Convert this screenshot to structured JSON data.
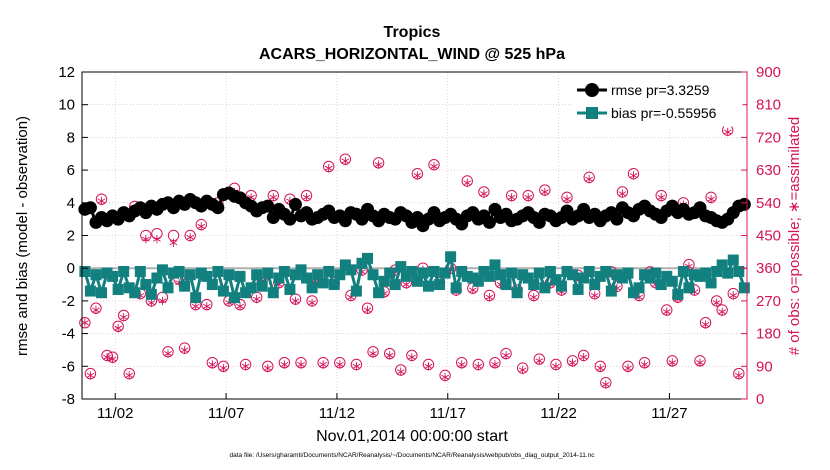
{
  "chart_data": {
    "type": "line",
    "title": "Tropics",
    "subtitle": "ACARS_HORIZONTAL_WIND @ 525 hPa",
    "xlabel": "Nov.01,2014 00:00:00 start",
    "ylabel_left": "rmse and bias (model - observation)",
    "ylabel_right": "# of obs: o=possible; ∗=assimilated",
    "footer": "data file: /Users/gharamti/Documents/NCAR/Reanalysis/~/Documents/NCAR/Reanalysis/webpub/obs_diag_output_2014-11.nc",
    "xlim": [
      0.5,
      30.5
    ],
    "ylim_left": [
      -8,
      12
    ],
    "ylim_right": [
      0,
      900
    ],
    "x_ticks": [
      2,
      7,
      12,
      17,
      22,
      27
    ],
    "x_tick_labels": [
      "11/02",
      "11/07",
      "11/12",
      "11/17",
      "11/22",
      "11/27"
    ],
    "y_left_ticks": [
      -8,
      -6,
      -4,
      -2,
      0,
      2,
      4,
      6,
      8,
      10,
      12
    ],
    "y_left_tick_labels": [
      "-8",
      "-6",
      "-4",
      "-2",
      "0",
      "2",
      "4",
      "6",
      "8",
      "10",
      "12"
    ],
    "y_right_ticks": [
      0,
      90,
      180,
      270,
      360,
      450,
      540,
      630,
      720,
      810,
      900
    ],
    "y_right_tick_labels": [
      "0",
      "90",
      "180",
      "270",
      "360",
      "450",
      "540",
      "630",
      "720",
      "810",
      "900"
    ],
    "grid": true,
    "legend_position": "top-right",
    "colors": {
      "rmse": "#000000",
      "bias": "#138080",
      "obs": "#d4135a",
      "zero_line": "#b0b0b0",
      "grid": "#d9b0c4"
    },
    "series": [
      {
        "name": "rmse",
        "legend": "rmse pr=3.3259",
        "marker": "circle",
        "x": [
          0.63,
          0.88,
          1.13,
          1.38,
          1.63,
          1.88,
          2.13,
          2.38,
          2.63,
          2.88,
          3.13,
          3.38,
          3.63,
          3.88,
          4.13,
          4.38,
          4.63,
          4.88,
          5.13,
          5.38,
          5.63,
          5.88,
          6.13,
          6.38,
          6.63,
          6.88,
          7.13,
          7.38,
          7.63,
          7.88,
          8.13,
          8.38,
          8.63,
          8.88,
          9.13,
          9.38,
          9.63,
          9.88,
          10.13,
          10.38,
          10.63,
          10.88,
          11.13,
          11.38,
          11.63,
          11.88,
          12.13,
          12.38,
          12.63,
          12.88,
          13.13,
          13.38,
          13.63,
          13.88,
          14.13,
          14.38,
          14.63,
          14.88,
          15.13,
          15.38,
          15.63,
          15.88,
          16.13,
          16.38,
          16.63,
          16.88,
          17.13,
          17.38,
          17.63,
          17.88,
          18.13,
          18.38,
          18.63,
          18.88,
          19.13,
          19.38,
          19.63,
          19.88,
          20.13,
          20.38,
          20.63,
          20.88,
          21.13,
          21.38,
          21.63,
          21.88,
          22.13,
          22.38,
          22.63,
          22.88,
          23.13,
          23.38,
          23.63,
          23.88,
          24.13,
          24.38,
          24.63,
          24.88,
          25.13,
          25.38,
          25.63,
          25.88,
          26.13,
          26.38,
          26.63,
          26.88,
          27.13,
          27.38,
          27.63,
          27.88,
          28.13,
          28.38,
          28.63,
          28.88,
          29.13,
          29.38,
          29.63,
          29.88,
          30.13,
          30.38
        ],
        "values": [
          3.6,
          3.7,
          2.8,
          3.1,
          2.9,
          3.2,
          3.0,
          3.4,
          3.2,
          3.5,
          3.7,
          3.4,
          3.8,
          3.6,
          3.9,
          4.0,
          3.7,
          4.1,
          3.9,
          4.2,
          4.0,
          3.8,
          4.1,
          3.9,
          3.7,
          4.5,
          4.6,
          4.4,
          4.3,
          4.0,
          3.8,
          3.5,
          3.7,
          3.8,
          3.1,
          3.6,
          3.3,
          3.0,
          3.9,
          3.2,
          3.4,
          3.0,
          3.1,
          3.3,
          3.5,
          3.1,
          3.2,
          2.9,
          3.4,
          3.3,
          3.0,
          3.6,
          3.2,
          2.9,
          3.3,
          3.1,
          3.0,
          3.4,
          3.2,
          2.8,
          3.1,
          2.6,
          3.0,
          3.4,
          2.9,
          3.1,
          3.3,
          3.0,
          2.7,
          3.2,
          3.4,
          3.0,
          3.2,
          2.8,
          3.6,
          3.1,
          3.3,
          2.9,
          3.0,
          3.2,
          3.4,
          3.1,
          2.8,
          3.3,
          3.2,
          2.9,
          3.1,
          3.5,
          3.0,
          3.2,
          3.6,
          3.1,
          3.3,
          2.9,
          3.2,
          3.4,
          3.0,
          3.7,
          3.4,
          3.2,
          3.6,
          3.8,
          3.5,
          3.3,
          3.1,
          3.5,
          3.8,
          3.4,
          3.6,
          3.3,
          3.4,
          3.7,
          3.2,
          3.1,
          2.9,
          2.8,
          3.0,
          3.4,
          3.8,
          3.9
        ]
      },
      {
        "name": "bias",
        "legend": "bias pr=-0.55956",
        "marker": "square",
        "x": [
          0.63,
          0.88,
          1.13,
          1.38,
          1.63,
          1.88,
          2.13,
          2.38,
          2.63,
          2.88,
          3.13,
          3.38,
          3.63,
          3.88,
          4.13,
          4.38,
          4.63,
          4.88,
          5.13,
          5.38,
          5.63,
          5.88,
          6.13,
          6.38,
          6.63,
          6.88,
          7.13,
          7.38,
          7.63,
          7.88,
          8.13,
          8.38,
          8.63,
          8.88,
          9.13,
          9.38,
          9.63,
          9.88,
          10.13,
          10.38,
          10.63,
          10.88,
          11.13,
          11.38,
          11.63,
          11.88,
          12.13,
          12.38,
          12.63,
          12.88,
          13.13,
          13.38,
          13.63,
          13.88,
          14.13,
          14.38,
          14.63,
          14.88,
          15.13,
          15.38,
          15.63,
          15.88,
          16.13,
          16.38,
          16.63,
          16.88,
          17.13,
          17.38,
          17.63,
          17.88,
          18.13,
          18.38,
          18.63,
          18.88,
          19.13,
          19.38,
          19.63,
          19.88,
          20.13,
          20.38,
          20.63,
          20.88,
          21.13,
          21.38,
          21.63,
          21.88,
          22.13,
          22.38,
          22.63,
          22.88,
          23.13,
          23.38,
          23.63,
          23.88,
          24.13,
          24.38,
          24.63,
          24.88,
          25.13,
          25.38,
          25.63,
          25.88,
          26.13,
          26.38,
          26.63,
          26.88,
          27.13,
          27.38,
          27.63,
          27.88,
          28.13,
          28.38,
          28.63,
          28.88,
          29.13,
          29.38,
          29.63,
          29.88,
          30.13,
          30.38
        ],
        "values": [
          -0.2,
          -1.4,
          -0.4,
          -1.5,
          -0.3,
          -0.5,
          -1.3,
          -0.2,
          -1.2,
          -1.5,
          -0.2,
          -1.0,
          -1.6,
          -0.6,
          -0.1,
          -1.2,
          -0.3,
          -0.2,
          -1.1,
          -0.4,
          -1.8,
          -0.3,
          -0.5,
          -1.0,
          -0.2,
          -1.4,
          -0.4,
          -1.8,
          -0.5,
          -1.5,
          -1.2,
          -0.4,
          -1.1,
          -0.3,
          -1.5,
          -0.6,
          -0.2,
          -1.3,
          -0.4,
          -0.1,
          -0.6,
          -1.2,
          -0.4,
          -0.9,
          -0.2,
          -1.0,
          -0.4,
          0.2,
          -0.1,
          -1.4,
          0.3,
          0.6,
          -0.4,
          -1.5,
          -0.8,
          -0.3,
          -1.0,
          0.1,
          -0.5,
          -0.2,
          -0.8,
          -0.3,
          -1.1,
          -0.2,
          -1.0,
          -0.3,
          0.7,
          -1.2,
          -0.2,
          -0.5,
          -0.6,
          -0.8,
          -0.2,
          -0.5,
          0.2,
          -0.4,
          -1.0,
          -0.3,
          -1.5,
          -0.4,
          -0.6,
          -1.0,
          -0.3,
          -1.2,
          -0.2,
          -0.7,
          -1.1,
          -0.2,
          -0.4,
          -1.3,
          -0.6,
          -0.2,
          -1.0,
          -0.5,
          -0.2,
          -1.4,
          -0.4,
          -0.6,
          -0.3,
          -1.5,
          -1.2,
          -0.4,
          -0.6,
          -0.3,
          -1.0,
          -0.5,
          -0.8,
          -1.6,
          -0.2,
          -1.2,
          -0.4,
          -0.5,
          -0.3,
          -0.9,
          -0.2,
          0.2,
          -0.3,
          0.5,
          -0.2,
          -1.2
        ]
      },
      {
        "name": "# of obs possible / assimilated",
        "marker": "circle-asterisk",
        "axis": "right",
        "x": [
          0.63,
          0.88,
          1.13,
          1.38,
          1.63,
          1.88,
          2.13,
          2.38,
          2.63,
          2.88,
          3.13,
          3.38,
          3.63,
          3.88,
          4.13,
          4.38,
          4.63,
          4.88,
          5.13,
          5.38,
          5.63,
          5.88,
          6.13,
          6.38,
          6.63,
          6.88,
          7.13,
          7.38,
          7.63,
          7.88,
          8.13,
          8.38,
          8.63,
          8.88,
          9.13,
          9.38,
          9.63,
          9.88,
          10.13,
          10.38,
          10.63,
          10.88,
          11.13,
          11.38,
          11.63,
          11.88,
          12.13,
          12.38,
          12.63,
          12.88,
          13.13,
          13.38,
          13.63,
          13.88,
          14.13,
          14.38,
          14.63,
          14.88,
          15.13,
          15.38,
          15.63,
          15.88,
          16.13,
          16.38,
          16.63,
          16.88,
          17.13,
          17.38,
          17.63,
          17.88,
          18.13,
          18.38,
          18.63,
          18.88,
          19.13,
          19.38,
          19.63,
          19.88,
          20.13,
          20.38,
          20.63,
          20.88,
          21.13,
          21.38,
          21.63,
          21.88,
          22.13,
          22.38,
          22.63,
          22.88,
          23.13,
          23.38,
          23.63,
          23.88,
          24.13,
          24.38,
          24.63,
          24.88,
          25.13,
          25.38,
          25.63,
          25.88,
          26.13,
          26.38,
          26.63,
          26.88,
          27.13,
          27.38,
          27.63,
          27.88,
          28.13,
          28.38,
          28.63,
          28.88,
          29.13,
          29.38,
          29.63,
          29.88,
          30.13,
          30.38
        ],
        "possible": [
          210,
          70,
          250,
          550,
          120,
          115,
          200,
          230,
          70,
          530,
          290,
          450,
          270,
          455,
          280,
          130,
          450,
          330,
          140,
          450,
          260,
          480,
          260,
          100,
          540,
          90,
          270,
          580,
          260,
          95,
          560,
          280,
          330,
          90,
          560,
          320,
          100,
          550,
          275,
          100,
          560,
          270,
          325,
          100,
          640,
          320,
          100,
          660,
          285,
          95,
          355,
          250,
          130,
          650,
          295,
          125,
          355,
          80,
          320,
          120,
          620,
          360,
          95,
          645,
          320,
          65,
          360,
          300,
          100,
          600,
          305,
          95,
          570,
          285,
          100,
          320,
          125,
          560,
          300,
          85,
          560,
          285,
          110,
          575,
          320,
          95,
          300,
          555,
          105,
          340,
          120,
          610,
          290,
          90,
          45,
          350,
          310,
          570,
          90,
          620,
          285,
          100,
          350,
          320,
          560,
          245,
          105,
          280,
          540,
          370,
          300,
          105,
          210,
          555,
          270,
          245,
          740,
          290,
          70,
          535,
          0
        ],
        "assimilated": [
          210,
          65,
          245,
          545,
          115,
          110,
          195,
          225,
          65,
          525,
          285,
          440,
          265,
          440,
          270,
          125,
          430,
          320,
          135,
          445,
          255,
          475,
          255,
          95,
          535,
          85,
          265,
          570,
          255,
          90,
          555,
          275,
          325,
          85,
          555,
          315,
          95,
          545,
          270,
          95,
          555,
          265,
          320,
          95,
          635,
          315,
          95,
          655,
          280,
          90,
          350,
          245,
          125,
          645,
          290,
          120,
          350,
          75,
          315,
          115,
          615,
          355,
          90,
          640,
          315,
          60,
          355,
          295,
          95,
          595,
          300,
          90,
          565,
          280,
          95,
          315,
          120,
          555,
          295,
          80,
          555,
          280,
          105,
          570,
          315,
          90,
          295,
          550,
          100,
          335,
          115,
          605,
          285,
          85,
          40,
          345,
          305,
          565,
          85,
          615,
          280,
          95,
          345,
          315,
          555,
          240,
          100,
          275,
          535,
          365,
          295,
          100,
          205,
          550,
          265,
          240,
          735,
          285,
          65,
          530,
          0
        ]
      }
    ]
  }
}
